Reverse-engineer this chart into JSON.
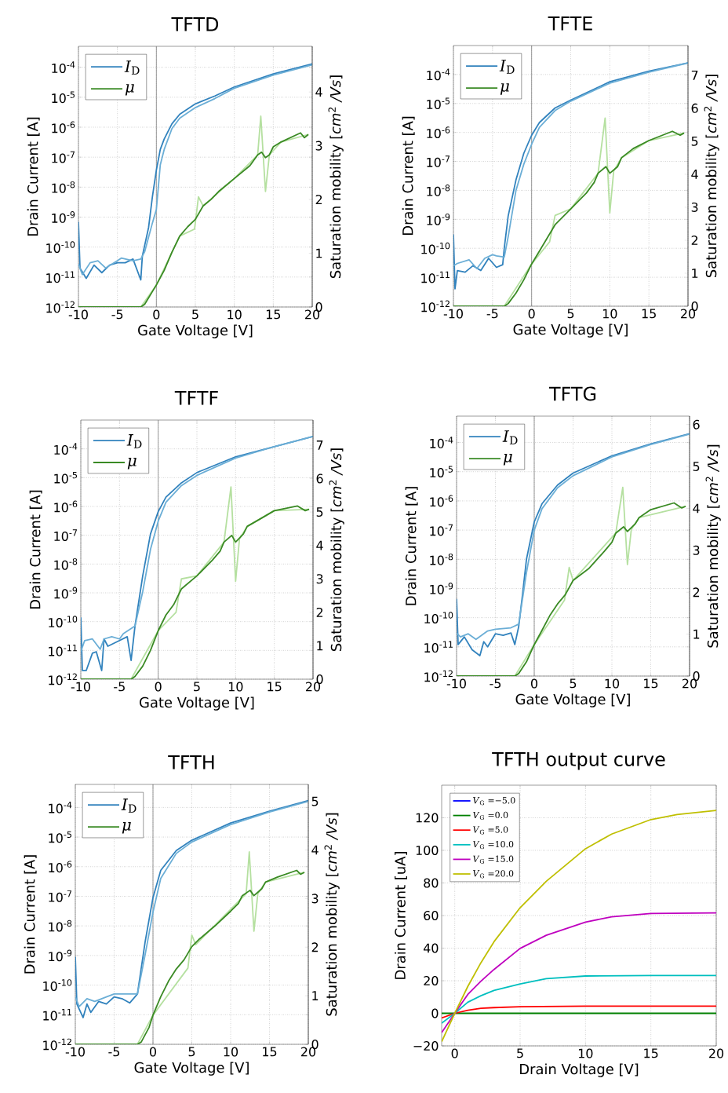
{
  "chart_data": [
    {
      "type": "line",
      "title": "TFTD",
      "xlabel": "Gate Voltage [V]",
      "ylabel": "Drain Current [A]",
      "y2label": "Saturation mobility [*cm*$^{2}$ */Vs*]",
      "xlim": [
        -10,
        20
      ],
      "xticks": [
        -10,
        -5,
        0,
        5,
        10,
        15,
        20
      ],
      "ylim": [
        1e-12,
        0.0005
      ],
      "yticks": [
        {
          "value": 1e-12,
          "label": "10$^{-12}$"
        },
        {
          "value": 1e-11,
          "label": "10$^{-11}$"
        },
        {
          "value": 1e-10,
          "label": "10$^{-10}$"
        },
        {
          "value": 1e-09,
          "label": "10$^{-9}$"
        },
        {
          "value": 1e-08,
          "label": "10$^{-8}$"
        },
        {
          "value": 1e-07,
          "label": "10$^{-7}$"
        },
        {
          "value": 1e-06,
          "label": "10$^{-6}$"
        },
        {
          "value": 1e-05,
          "label": "10$^{-5}$"
        },
        {
          "value": 0.0001,
          "label": "10$^{-4}$"
        }
      ],
      "y2lim": [
        0,
        4.85
      ],
      "y2ticks": [
        0,
        1,
        2,
        3,
        4
      ],
      "log": "y",
      "grid": true,
      "legend": "top left",
      "ref_lines": [
        {
          "axis": "x",
          "value": 0,
          "color": "#808080"
        }
      ],
      "series": [
        {
          "name": "*I*$_{D}$",
          "color": "#3182bd",
          "x": [
            -10,
            -9.8,
            -9,
            -8,
            -7,
            -6,
            -5,
            -4,
            -3,
            -2,
            -1.8,
            -1,
            -0.5,
            0,
            0.5,
            1,
            2,
            3,
            5,
            7.5,
            10,
            15,
            20
          ],
          "values": [
            7e-10,
            2e-11,
            9e-12,
            2.5e-11,
            1.4e-11,
            2.5e-11,
            3e-11,
            3e-11,
            4e-11,
            8e-12,
            5e-11,
            4.5e-10,
            5e-09,
            3.7e-08,
            1.8e-07,
            4e-07,
            1.3e-06,
            2.7e-06,
            6e-06,
            1.1e-05,
            2.2e-05,
            6e-05,
            0.00013
          ]
        },
        {
          "color": "#6baed6",
          "x": [
            -10,
            -9.5,
            -8.5,
            -7.5,
            -6.5,
            -5,
            -4.5,
            -3,
            -2,
            -1.5,
            -0.5,
            0,
            0.5,
            1,
            2,
            3,
            5,
            7.5,
            10,
            15,
            20
          ],
          "values": [
            2.7e-11,
            1.2e-11,
            3e-11,
            3.5e-11,
            2e-11,
            3.5e-11,
            4.3e-11,
            3.5e-11,
            4e-11,
            7e-11,
            6.5e-10,
            1.8e-09,
            5.5e-08,
            1.8e-07,
            9e-07,
            2e-06,
            4.5e-06,
            9e-06,
            2e-05,
            5.5e-05,
            0.00012
          ]
        },
        {
          "color": "#b5e0a0",
          "axis": "y2",
          "x": [
            -10,
            -2,
            0,
            3,
            4.9,
            5.4,
            6,
            10,
            13,
            13.4,
            14,
            14.5,
            16,
            19.5
          ],
          "values": [
            0,
            0,
            0.41,
            1.32,
            1.45,
            2.05,
            1.88,
            2.39,
            2.83,
            3.55,
            2.15,
            2.83,
            3.07,
            3.21
          ]
        },
        {
          "name": "*μ*",
          "color": "#3a8a24",
          "axis": "y2",
          "x": [
            -10,
            -2,
            -1.5,
            -0.5,
            0,
            1,
            2,
            3,
            4,
            5,
            6,
            7,
            8,
            10,
            12,
            13,
            13.5,
            14,
            14.5,
            15,
            16,
            18.5,
            19,
            19.5
          ],
          "values": [
            0,
            0,
            0.05,
            0.29,
            0.41,
            0.68,
            1.02,
            1.32,
            1.49,
            1.63,
            1.88,
            2.0,
            2.15,
            2.39,
            2.63,
            2.83,
            2.88,
            2.78,
            2.83,
            2.98,
            3.07,
            3.24,
            3.15,
            3.21
          ]
        }
      ]
    },
    {
      "type": "line",
      "title": "TFTE",
      "xlabel": "Gate Voltage [V]",
      "ylabel": "Drain Current [A]",
      "y2label": "Saturation mobility [*cm*$^{2}$ */Vs*]",
      "xlim": [
        -10,
        20
      ],
      "xticks": [
        -10,
        -5,
        0,
        5,
        10,
        15,
        20
      ],
      "ylim": [
        1e-12,
        0.001
      ],
      "yticks": [
        {
          "value": 1e-12,
          "label": "10$^{-12}$"
        },
        {
          "value": 1e-11,
          "label": "10$^{-11}$"
        },
        {
          "value": 1e-10,
          "label": "10$^{-10}$"
        },
        {
          "value": 1e-09,
          "label": "10$^{-9}$"
        },
        {
          "value": 1e-08,
          "label": "10$^{-8}$"
        },
        {
          "value": 1e-07,
          "label": "10$^{-7}$"
        },
        {
          "value": 1e-06,
          "label": "10$^{-6}$"
        },
        {
          "value": 1e-05,
          "label": "10$^{-5}$"
        },
        {
          "value": 0.0001,
          "label": "10$^{-4}$"
        }
      ],
      "y2lim": [
        0,
        7.9
      ],
      "y2ticks": [
        0,
        1,
        2,
        3,
        4,
        5,
        6,
        7
      ],
      "log": "y",
      "grid": true,
      "legend": "top left",
      "ref_lines": [
        {
          "axis": "x",
          "value": 0,
          "color": "#808080"
        }
      ],
      "series": [
        {
          "name": "*I*$_{D}$",
          "color": "#3182bd",
          "x": [
            -10,
            -9.8,
            -9.5,
            -8.5,
            -7.5,
            -6.5,
            -5.5,
            -4.5,
            -3.7,
            -3.5,
            -3,
            -2,
            -1,
            0,
            1,
            3,
            5,
            10,
            15,
            20
          ],
          "values": [
            3e-10,
            4e-12,
            1.7e-11,
            1.5e-11,
            2.5e-11,
            1.7e-11,
            4.5e-11,
            2.2e-11,
            2.7e-11,
            1e-10,
            1.3e-09,
            2.3e-08,
            1.9e-07,
            8e-07,
            2.2e-06,
            7e-06,
            1.3e-05,
            5.6e-05,
            0.00013,
            0.00025
          ]
        },
        {
          "color": "#6baed6",
          "x": [
            -10,
            -9.5,
            -8,
            -7,
            -6,
            -5,
            -4.5,
            -3.5,
            -3,
            -2,
            -1,
            0,
            1,
            3,
            5,
            10,
            15,
            20
          ],
          "values": [
            2.5e-11,
            3e-11,
            4e-11,
            2e-11,
            4.5e-11,
            6e-11,
            5.5e-11,
            5e-11,
            2.5e-10,
            1e-08,
            8e-08,
            3.9e-07,
            1.5e-06,
            5.7e-06,
            1.2e-05,
            5e-05,
            0.00012,
            0.00025
          ]
        },
        {
          "color": "#b5e0a0",
          "axis": "y2",
          "x": [
            -10,
            -3.5,
            0,
            2.3,
            3,
            5,
            8.5,
            9.4,
            10,
            10.5,
            11.5,
            15,
            19.5
          ],
          "values": [
            0,
            0,
            1.28,
            1.95,
            2.75,
            2.95,
            4.03,
            5.7,
            2.83,
            4.1,
            4.5,
            5.02,
            5.25
          ]
        },
        {
          "name": "*μ*",
          "color": "#3a8a24",
          "axis": "y2",
          "x": [
            -10,
            -3.5,
            -3,
            -2,
            -1,
            0,
            1,
            2,
            3,
            4,
            5,
            7,
            8,
            8.5,
            9.5,
            10,
            11,
            11.5,
            13,
            15,
            18,
            19,
            19.5
          ],
          "values": [
            0,
            0,
            0.08,
            0.4,
            0.8,
            1.28,
            1.67,
            2.07,
            2.47,
            2.71,
            2.95,
            3.43,
            3.75,
            4.03,
            4.23,
            4.03,
            4.23,
            4.5,
            4.78,
            5.02,
            5.3,
            5.18,
            5.25
          ]
        }
      ]
    },
    {
      "type": "line",
      "title": "TFTF",
      "xlabel": "Gate Voltage [V]",
      "ylabel": "Drain Current [A]",
      "y2label": "Saturation mobility [*cm*$^{2}$ */Vs*]",
      "xlim": [
        -10,
        20
      ],
      "xticks": [
        -10,
        -5,
        0,
        5,
        10,
        15,
        20
      ],
      "ylim": [
        1e-12,
        0.001
      ],
      "yticks": [
        {
          "value": 1e-12,
          "label": "10$^{-12}$"
        },
        {
          "value": 1e-11,
          "label": "10$^{-11}$"
        },
        {
          "value": 1e-10,
          "label": "10$^{-10}$"
        },
        {
          "value": 1e-09,
          "label": "10$^{-9}$"
        },
        {
          "value": 1e-08,
          "label": "10$^{-8}$"
        },
        {
          "value": 1e-07,
          "label": "10$^{-7}$"
        },
        {
          "value": 1e-06,
          "label": "10$^{-6}$"
        },
        {
          "value": 1e-05,
          "label": "10$^{-5}$"
        },
        {
          "value": 0.0001,
          "label": "10$^{-4}$"
        }
      ],
      "y2lim": [
        0,
        7.75
      ],
      "y2ticks": [
        0,
        1,
        2,
        3,
        4,
        5,
        6,
        7
      ],
      "log": "y",
      "grid": true,
      "legend": "top left",
      "ref_lines": [
        {
          "axis": "x",
          "value": 0,
          "color": "#808080"
        }
      ],
      "series": [
        {
          "name": "*I*$_{D}$",
          "color": "#3182bd",
          "x": [
            -10,
            -9.8,
            -9.3,
            -8.5,
            -8,
            -7.3,
            -7,
            -6.5,
            -5,
            -4,
            -3.5,
            -3,
            -2,
            -1,
            0,
            1,
            3,
            5,
            10,
            15,
            20
          ],
          "values": [
            1.4e-10,
            2e-12,
            2e-12,
            8e-12,
            9e-12,
            2e-12,
            2.5e-11,
            1.4e-11,
            2.2e-11,
            3e-11,
            4.5e-12,
            7e-11,
            3.9e-09,
            1.1e-07,
            6.6e-07,
            2.1e-06,
            6.6e-06,
            1.5e-05,
            5.3e-05,
            0.00012,
            0.00027
          ]
        },
        {
          "color": "#6baed6",
          "x": [
            -10,
            -9.5,
            -8.5,
            -7.5,
            -7,
            -6,
            -5,
            -4.5,
            -3,
            -2,
            -1,
            0,
            1,
            3,
            5,
            10,
            15,
            20
          ],
          "values": [
            9e-12,
            2.2e-11,
            2.5e-11,
            1.1e-11,
            2.5e-11,
            3e-11,
            2.5e-11,
            3.8e-11,
            7e-11,
            1.1e-09,
            3.2e-08,
            3.1e-07,
            1.4e-06,
            5.3e-06,
            1.2e-05,
            4.8e-05,
            0.00012,
            0.00027
          ]
        },
        {
          "color": "#b5e0a0",
          "axis": "y2",
          "x": [
            -10,
            -3.5,
            0,
            2.3,
            3,
            5,
            8.5,
            9.4,
            10,
            10.5,
            11.5,
            15,
            19.5
          ],
          "values": [
            0,
            0,
            1.45,
            2.0,
            3.0,
            3.09,
            4.1,
            5.75,
            2.93,
            4.2,
            4.57,
            5.04,
            5.08
          ]
        },
        {
          "name": "*μ*",
          "color": "#3a8a24",
          "axis": "y2",
          "x": [
            -10,
            -3.5,
            -3,
            -2,
            -1,
            0,
            1,
            2,
            3,
            5,
            7,
            8,
            8.5,
            9.5,
            10,
            11,
            11.5,
            13,
            15,
            18,
            19,
            19.5
          ],
          "values": [
            0,
            0,
            0.08,
            0.39,
            0.86,
            1.45,
            1.92,
            2.23,
            2.7,
            3.09,
            3.56,
            3.83,
            4.1,
            4.3,
            4.1,
            4.34,
            4.57,
            4.77,
            5.04,
            5.18,
            5.04,
            5.08
          ]
        }
      ]
    },
    {
      "type": "line",
      "title": "TFTG",
      "xlabel": "Gate Voltage [V]",
      "ylabel": "Drain Current [A]",
      "y2label": "Saturation mobility [*cm*$^{2}$ */Vs*]",
      "xlim": [
        -10,
        20
      ],
      "xticks": [
        -10,
        -5,
        0,
        5,
        10,
        15,
        20
      ],
      "ylim": [
        1e-12,
        0.0008
      ],
      "yticks": [
        {
          "value": 1e-12,
          "label": "10$^{-12}$"
        },
        {
          "value": 1e-11,
          "label": "10$^{-11}$"
        },
        {
          "value": 1e-10,
          "label": "10$^{-10}$"
        },
        {
          "value": 1e-09,
          "label": "10$^{-9}$"
        },
        {
          "value": 1e-08,
          "label": "10$^{-8}$"
        },
        {
          "value": 1e-07,
          "label": "10$^{-7}$"
        },
        {
          "value": 1e-06,
          "label": "10$^{-6}$"
        },
        {
          "value": 1e-05,
          "label": "10$^{-5}$"
        },
        {
          "value": 0.0001,
          "label": "10$^{-4}$"
        }
      ],
      "y2lim": [
        0,
        6.2
      ],
      "y2ticks": [
        0,
        1,
        2,
        3,
        4,
        5,
        6
      ],
      "log": "y",
      "grid": true,
      "legend": "top left",
      "ref_lines": [
        {
          "axis": "x",
          "value": 0,
          "color": "#808080"
        }
      ],
      "series": [
        {
          "name": "*I*$_{D}$",
          "color": "#3182bd",
          "x": [
            -10,
            -9.8,
            -9,
            -8,
            -7,
            -6.5,
            -6,
            -5,
            -4,
            -3,
            -2.5,
            -2,
            -1.5,
            -1,
            0,
            1,
            3,
            5,
            10,
            15,
            20
          ],
          "values": [
            4.4e-10,
            1.2e-11,
            2.2e-11,
            8e-12,
            5e-12,
            1.5e-11,
            1e-11,
            2.8e-11,
            2.5e-11,
            3e-11,
            1.2e-11,
            5e-11,
            6.5e-10,
            1e-08,
            1.9e-07,
            8e-07,
            3.5e-06,
            9e-06,
            3.5e-05,
            9e-05,
            0.0002
          ]
        },
        {
          "color": "#6baed6",
          "x": [
            -10,
            -9.5,
            -8.5,
            -7.5,
            -6,
            -5,
            -3,
            -2,
            -1,
            0,
            1,
            3,
            5,
            10,
            15,
            20
          ],
          "values": [
            3e-11,
            2.2e-11,
            2.8e-11,
            1.8e-11,
            3.5e-11,
            4e-11,
            4.5e-11,
            6e-11,
            3.5e-09,
            1e-07,
            5.4e-07,
            2.8e-06,
            7.3e-06,
            3.2e-05,
            8.5e-05,
            0.000195
          ]
        },
        {
          "color": "#b5e0a0",
          "axis": "y2",
          "x": [
            -10,
            -2.5,
            0,
            3.9,
            4.5,
            5,
            10.5,
            11.4,
            12,
            12.5,
            13.5,
            19.5
          ],
          "values": [
            0,
            0,
            0.75,
            1.81,
            2.59,
            2.28,
            3.41,
            4.5,
            2.66,
            3.5,
            3.78,
            4.05
          ]
        },
        {
          "name": "*μ*",
          "color": "#3a8a24",
          "axis": "y2",
          "x": [
            -10,
            -2.5,
            -2,
            -1,
            0,
            1,
            2,
            3,
            4,
            5,
            7,
            9,
            10,
            10.5,
            11.5,
            12,
            13,
            13.5,
            15,
            18,
            19,
            19.5
          ],
          "values": [
            0,
            0,
            0.06,
            0.34,
            0.75,
            1.09,
            1.44,
            1.72,
            1.94,
            2.28,
            2.56,
            2.97,
            3.19,
            3.41,
            3.56,
            3.45,
            3.63,
            3.78,
            3.97,
            4.13,
            4.01,
            4.05
          ]
        }
      ]
    },
    {
      "type": "line",
      "title": "TFTH",
      "xlabel": "Gate Voltage [V]",
      "ylabel": "Drain Current [A]",
      "y2label": "Saturation mobility [*cm*$^{2}$ */Vs*]",
      "xlim": [
        -10,
        20
      ],
      "xticks": [
        -10,
        -5,
        0,
        5,
        10,
        15,
        20
      ],
      "ylim": [
        1e-12,
        0.0006
      ],
      "yticks": [
        {
          "value": 1e-12,
          "label": "10$^{-12}$"
        },
        {
          "value": 1e-11,
          "label": "10$^{-11}$"
        },
        {
          "value": 1e-10,
          "label": "10$^{-10}$"
        },
        {
          "value": 1e-09,
          "label": "10$^{-9}$"
        },
        {
          "value": 1e-08,
          "label": "10$^{-8}$"
        },
        {
          "value": 1e-07,
          "label": "10$^{-7}$"
        },
        {
          "value": 1e-06,
          "label": "10$^{-6}$"
        },
        {
          "value": 1e-05,
          "label": "10$^{-5}$"
        },
        {
          "value": 0.0001,
          "label": "10$^{-4}$"
        }
      ],
      "y2lim": [
        0,
        5.35
      ],
      "y2ticks": [
        0,
        1,
        2,
        3,
        4,
        5
      ],
      "log": "y",
      "grid": true,
      "legend": "top left",
      "ref_lines": [
        {
          "axis": "x",
          "value": 0,
          "color": "#808080"
        }
      ],
      "series": [
        {
          "name": "*I*$_{D}$",
          "color": "#3182bd",
          "x": [
            -10,
            -9.8,
            -9,
            -8.5,
            -8,
            -7,
            -6,
            -5,
            -4,
            -3,
            -2,
            -1,
            0,
            1,
            3,
            5,
            10,
            15,
            20
          ],
          "values": [
            9e-10,
            2.3e-11,
            8e-12,
            2.3e-11,
            1.2e-11,
            2.8e-11,
            2.3e-11,
            4e-11,
            3.5e-11,
            2.5e-11,
            5e-11,
            3e-09,
            9e-08,
            7.5e-07,
            3.5e-06,
            7.8e-06,
            3e-05,
            7.5e-05,
            0.00017
          ]
        },
        {
          "color": "#6baed6",
          "x": [
            -10,
            -9.5,
            -8.5,
            -7.5,
            -6,
            -5,
            -3,
            -2,
            -1,
            0,
            1,
            3,
            5,
            10,
            15,
            20
          ],
          "values": [
            4e-11,
            1.9e-11,
            3.5e-11,
            2.8e-11,
            4e-11,
            5e-11,
            5e-11,
            5e-11,
            1.1e-09,
            2.9e-08,
            4e-07,
            2.8e-06,
            6.8e-06,
            2.65e-05,
            7e-05,
            0.00016
          ]
        },
        {
          "color": "#b5e0a0",
          "axis": "y2",
          "x": [
            -10,
            -2,
            0,
            4.5,
            5,
            5.5,
            12,
            12.4,
            13,
            13.5,
            14.5,
            19.5
          ],
          "values": [
            0,
            0,
            0.6,
            1.57,
            2.25,
            2.05,
            3.1,
            3.96,
            2.33,
            3.1,
            3.34,
            3.54
          ]
        },
        {
          "name": "*μ*",
          "color": "#3a8a24",
          "axis": "y2",
          "x": [
            -10,
            -2,
            -1.5,
            -0.5,
            0,
            1,
            2,
            3,
            4,
            5,
            6,
            8,
            10,
            11,
            11.5,
            12.5,
            13,
            14,
            14.5,
            16,
            18.5,
            19,
            19.5
          ],
          "values": [
            0,
            0,
            0.05,
            0.35,
            0.6,
            0.98,
            1.3,
            1.55,
            1.74,
            2.01,
            2.17,
            2.44,
            2.74,
            2.9,
            3.06,
            3.17,
            3.06,
            3.2,
            3.34,
            3.44,
            3.58,
            3.5,
            3.54
          ]
        }
      ]
    },
    {
      "type": "line",
      "title": "TFTH output curve",
      "xlabel": "Drain Voltage [V]",
      "ylabel": "Drain Current [uA]",
      "xlim": [
        -1,
        20
      ],
      "xticks": [
        0,
        5,
        10,
        15,
        20
      ],
      "ylim": [
        -20,
        140
      ],
      "yticks": [
        {
          "value": -20,
          "label": "−20"
        },
        0,
        20,
        40,
        60,
        80,
        100,
        120
      ],
      "grid": true,
      "legend": "top left",
      "series": [
        {
          "name": "*V*$_{G}$ =−5.0",
          "color": "#0000ff"
        },
        {
          "name": "*V*$_{G}$ =0.0",
          "color": "#008000",
          "x": [
            -1,
            0,
            20
          ],
          "values": [
            0,
            0,
            0
          ]
        },
        {
          "name": "*V*$_{G}$ =5.0",
          "color": "#ff0000",
          "x": [
            -1,
            0,
            1,
            2,
            3,
            5,
            10,
            20
          ],
          "values": [
            -2.9,
            0,
            1.9,
            3.1,
            3.5,
            4,
            4.4,
            4.4
          ]
        },
        {
          "name": "*V*$_{G}$ =10.0",
          "color": "#00bfbf",
          "x": [
            -1,
            0,
            1,
            2,
            3,
            5,
            7,
            10,
            15,
            20
          ],
          "values": [
            -6.1,
            0,
            6.8,
            10.8,
            14,
            18,
            21.3,
            22.9,
            23.2,
            23.2
          ]
        },
        {
          "name": "*V*$_{G}$ =15.0",
          "color": "#bf00bf",
          "x": [
            -1,
            0,
            1,
            2,
            3,
            5,
            7,
            10,
            12,
            15,
            20
          ],
          "values": [
            -11.8,
            0,
            11.6,
            19.7,
            26.9,
            39.8,
            47.9,
            56,
            59.2,
            61.3,
            61.6
          ]
        },
        {
          "name": "*V*$_{G}$ =20.0",
          "color": "#bfbf00",
          "x": [
            -1,
            0,
            1,
            2,
            3,
            5,
            7,
            10,
            12,
            15,
            17,
            20
          ],
          "values": [
            -17.4,
            0,
            16.5,
            31,
            43.9,
            64.8,
            81,
            101,
            110,
            118.9,
            122,
            124.5
          ]
        }
      ]
    }
  ]
}
